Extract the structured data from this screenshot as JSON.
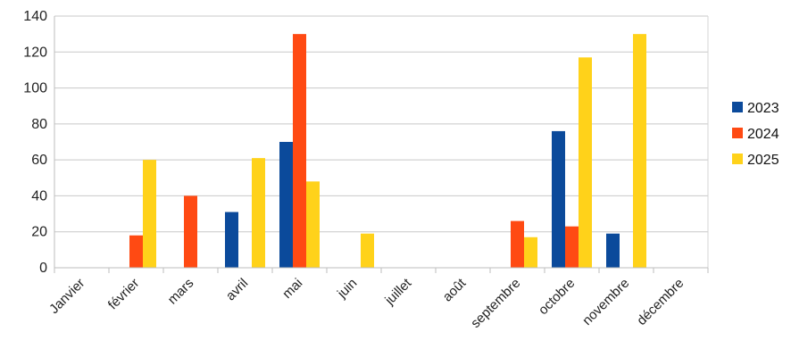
{
  "chart_data": {
    "type": "bar",
    "title": "",
    "xlabel": "",
    "ylabel": "",
    "categories": [
      "Janvier",
      "février",
      "mars",
      "avril",
      "mai",
      "juin",
      "juillet",
      "août",
      "septembre",
      "octobre",
      "novembre",
      "décembre"
    ],
    "series": [
      {
        "name": "2023",
        "color": "#0b4a9b",
        "values": [
          0,
          0,
          0,
          31,
          70,
          0,
          0,
          0,
          0,
          76,
          19,
          0
        ]
      },
      {
        "name": "2024",
        "color": "#ff4a13",
        "values": [
          0,
          18,
          40,
          0,
          130,
          0,
          0,
          0,
          26,
          23,
          0,
          0
        ]
      },
      {
        "name": "2025",
        "color": "#ffd21a",
        "values": [
          0,
          60,
          0,
          61,
          48,
          19,
          0,
          0,
          17,
          117,
          130,
          0
        ]
      }
    ],
    "ylim": [
      0,
      140
    ],
    "yticks": [
      0,
      20,
      40,
      60,
      80,
      100,
      120,
      140
    ],
    "grid": true,
    "legend": "right"
  }
}
